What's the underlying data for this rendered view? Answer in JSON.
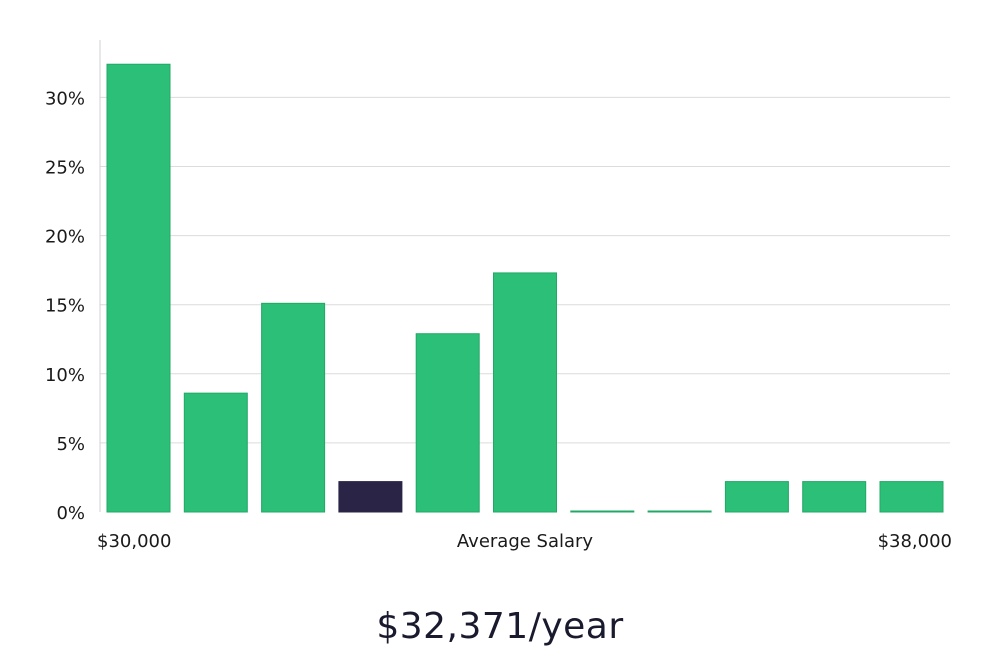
{
  "chart_data": {
    "type": "bar",
    "title": "",
    "xlabel": "Average Salary",
    "ylabel": "",
    "x_start_label": "$30,000",
    "x_end_label": "$38,000",
    "ylim": [
      0,
      0.34
    ],
    "yticks": [
      0,
      0.05,
      0.1,
      0.15,
      0.2,
      0.25,
      0.3
    ],
    "ytick_labels": [
      "0%",
      "5%",
      "10%",
      "15%",
      "20%",
      "25%",
      "30%"
    ],
    "grid": true,
    "values": [
      0.324,
      0.086,
      0.151,
      0.022,
      0.129,
      0.173,
      0.0005,
      0.0005,
      0.022,
      0.022,
      0.022
    ],
    "highlight_index": 3,
    "colors": {
      "bar": "#2bbf77",
      "bar_edge": "#22a866",
      "highlight": "#2a2447",
      "grid": "#dcdcdc",
      "axis": "#d0d0d0"
    }
  },
  "summary": {
    "salary_text": "$32,371/year"
  }
}
